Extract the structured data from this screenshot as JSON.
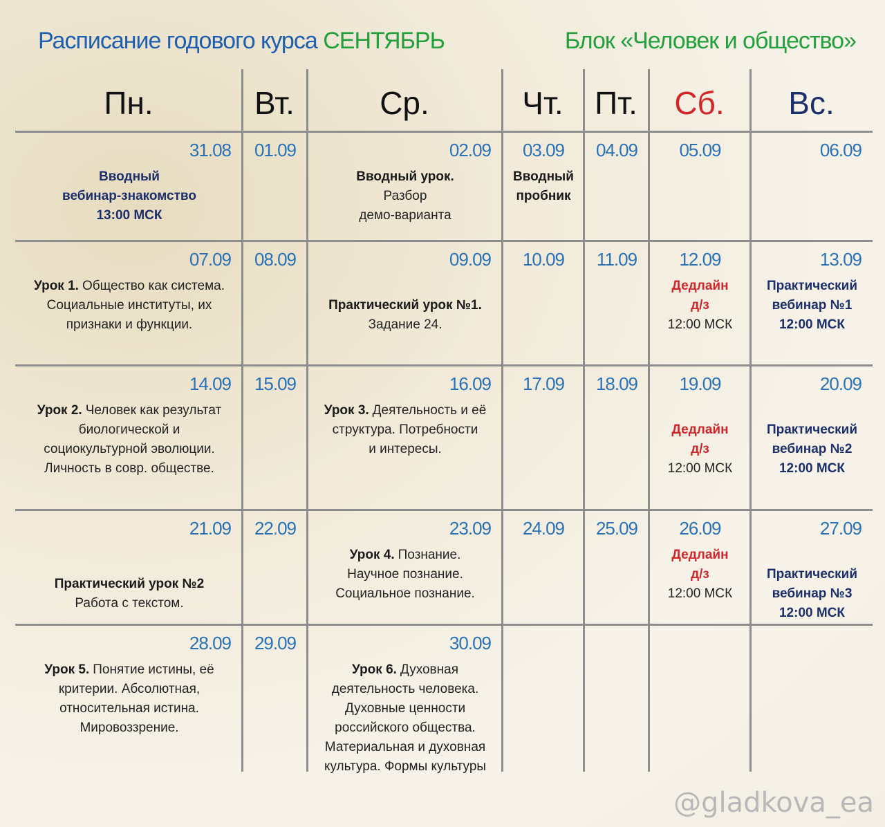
{
  "header": {
    "title": "Расписание годового курса",
    "month": "СЕНТЯБРЬ",
    "block": "Блок «Человек и общество»"
  },
  "days": [
    "Пн.",
    "Вт.",
    "Ср.",
    "Чт.",
    "Пт.",
    "Сб.",
    "Вс."
  ],
  "weeks": [
    [
      {
        "date": "31.08",
        "lines": [
          {
            "text": "Вводный",
            "style": "navy"
          },
          {
            "text": "вебинар-знакомство",
            "style": "navy"
          },
          {
            "text": "13:00 МСК",
            "style": "navy"
          }
        ]
      },
      {
        "date": "01.09"
      },
      {
        "date": "02.09",
        "lines": [
          {
            "text": "Вводный урок.",
            "style": "b"
          },
          {
            "text": "Разбор",
            "style": "n"
          },
          {
            "text": "демо-варианта",
            "style": "n"
          }
        ]
      },
      {
        "date": "03.09",
        "lines": [
          {
            "text": "Вводный",
            "style": "b"
          },
          {
            "text": "пробник",
            "style": "b"
          }
        ]
      },
      {
        "date": "04.09"
      },
      {
        "date": "05.09"
      },
      {
        "date": "06.09"
      }
    ],
    [
      {
        "date": "07.09",
        "lines": [
          {
            "parts": [
              {
                "text": "Урок 1.",
                "style": "b"
              },
              {
                "text": "Общество как система.",
                "style": "n"
              }
            ]
          },
          {
            "text": "Социальные институты, их",
            "style": "n"
          },
          {
            "text": "признаки и функции.",
            "style": "n"
          }
        ]
      },
      {
        "date": "08.09"
      },
      {
        "date": "09.09",
        "lines": [
          {
            "text": "Практический урок №1.",
            "style": "b"
          },
          {
            "text": "Задание 24.",
            "style": "n"
          }
        ]
      },
      {
        "date": "10.09"
      },
      {
        "date": "11.09"
      },
      {
        "date": "12.09",
        "lines": [
          {
            "text": "Дедлайн",
            "style": "red"
          },
          {
            "text": "д/з",
            "style": "red"
          },
          {
            "text": "12:00 МСК",
            "style": "n"
          }
        ]
      },
      {
        "date": "13.09",
        "lines": [
          {
            "text": "Практический",
            "style": "navy"
          },
          {
            "text": "вебинар №1",
            "style": "navy"
          },
          {
            "text": "12:00 МСК",
            "style": "navy"
          }
        ]
      }
    ],
    [
      {
        "date": "14.09",
        "lines": [
          {
            "parts": [
              {
                "text": "Урок 2.",
                "style": "b"
              },
              {
                "text": "Человек как результат",
                "style": "n"
              }
            ]
          },
          {
            "text": "биологической и",
            "style": "n"
          },
          {
            "text": "социокультурной эволюции.",
            "style": "n"
          },
          {
            "text": "Личность в совр. обществе.",
            "style": "n"
          }
        ]
      },
      {
        "date": "15.09"
      },
      {
        "date": "16.09",
        "lines": [
          {
            "parts": [
              {
                "text": "Урок 3.",
                "style": "b"
              },
              {
                "text": "Деятельность и её",
                "style": "n"
              }
            ]
          },
          {
            "text": "структура. Потребности",
            "style": "n"
          },
          {
            "text": "и интересы.",
            "style": "n"
          }
        ]
      },
      {
        "date": "17.09"
      },
      {
        "date": "18.09"
      },
      {
        "date": "19.09",
        "lines": [
          {
            "text": "Дедлайн",
            "style": "red"
          },
          {
            "text": "д/з",
            "style": "red"
          },
          {
            "text": "12:00 МСК",
            "style": "n"
          }
        ]
      },
      {
        "date": "20.09",
        "lines": [
          {
            "text": "Практический",
            "style": "navy"
          },
          {
            "text": "вебинар №2",
            "style": "navy"
          },
          {
            "text": "12:00 МСК",
            "style": "navy"
          }
        ]
      }
    ],
    [
      {
        "date": "21.09",
        "lines": [
          {
            "text": "Практический урок №2",
            "style": "b"
          },
          {
            "text": "Работа с текстом.",
            "style": "n"
          }
        ]
      },
      {
        "date": "22.09"
      },
      {
        "date": "23.09",
        "lines": [
          {
            "parts": [
              {
                "text": "Урок 4.",
                "style": "b"
              },
              {
                "text": "Познание.",
                "style": "n"
              }
            ]
          },
          {
            "text": "Научное познание.",
            "style": "n"
          },
          {
            "text": "Социальное познание.",
            "style": "n"
          }
        ]
      },
      {
        "date": "24.09"
      },
      {
        "date": "25.09"
      },
      {
        "date": "26.09",
        "lines": [
          {
            "text": "Дедлайн",
            "style": "red"
          },
          {
            "text": "д/з",
            "style": "red"
          },
          {
            "text": "12:00 МСК",
            "style": "n"
          }
        ]
      },
      {
        "date": "27.09",
        "lines": [
          {
            "text": "Практический",
            "style": "navy"
          },
          {
            "text": "вебинар №3",
            "style": "navy"
          },
          {
            "text": "12:00 МСК",
            "style": "navy"
          }
        ]
      }
    ],
    [
      {
        "date": "28.09",
        "lines": [
          {
            "parts": [
              {
                "text": "Урок 5.",
                "style": "b"
              },
              {
                "text": "Понятие истины, её",
                "style": "n"
              }
            ]
          },
          {
            "text": "критерии. Абсолютная,",
            "style": "n"
          },
          {
            "text": "относительная истина.",
            "style": "n"
          },
          {
            "text": "Мировоззрение.",
            "style": "n"
          }
        ]
      },
      {
        "date": "29.09"
      },
      {
        "date": "30.09",
        "lines": [
          {
            "parts": [
              {
                "text": "Урок 6.",
                "style": "b"
              },
              {
                "text": "Духовная",
                "style": "n"
              }
            ]
          },
          {
            "text": "деятельность человека.",
            "style": "n"
          },
          {
            "text": "Духовные ценности",
            "style": "n"
          },
          {
            "text": "российского общества.",
            "style": "n"
          },
          {
            "text": "Материальная и духовная",
            "style": "n"
          },
          {
            "text": "культура. Формы культуры",
            "style": "n"
          }
        ]
      },
      null,
      null,
      null,
      null
    ]
  ],
  "watermark": "@gladkova_ea"
}
